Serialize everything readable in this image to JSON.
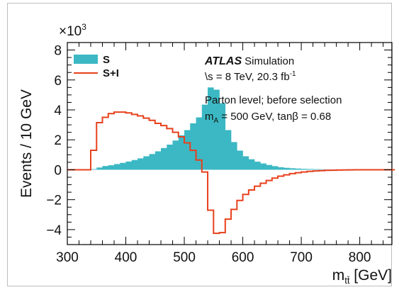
{
  "chart_data": {
    "type": "bar",
    "xlabel": "m",
    "xlabel_sub": "tt̄",
    "xlabel_unit": " [GeV]",
    "ylabel": "Events / 10 GeV",
    "y_multiplier": "×10",
    "y_multiplier_exp": "3",
    "xlim": [
      300,
      855
    ],
    "ylim": [
      -5000,
      8500
    ],
    "x_ticks": [
      300,
      400,
      500,
      600,
      700,
      800
    ],
    "y_ticks": [
      -4,
      -2,
      0,
      2,
      4,
      6,
      8
    ],
    "bin_width": 10,
    "legend": {
      "position": "top-left",
      "items": [
        {
          "label": "S",
          "style": "fill",
          "color": "#3bb8c4"
        },
        {
          "label": "S+I",
          "style": "line",
          "color": "#e8401c"
        }
      ]
    },
    "annotations": {
      "experiment": "ATLAS",
      "experiment_sub": "Simulation",
      "energy_prefix": "\\s = 8 TeV, 20.3 fb",
      "energy_sup": "-1",
      "line3": "Parton level; before selection",
      "line4_m": "m",
      "line4_sub": "A",
      "line4_rest": " = 500 GeV, tanβ = 0.68"
    },
    "series": [
      {
        "name": "S",
        "bin_edges_start": 300,
        "values": [
          0,
          0,
          0,
          0,
          40,
          150,
          250,
          300,
          380,
          460,
          550,
          650,
          760,
          900,
          1050,
          1230,
          1450,
          1680,
          1950,
          2300,
          2650,
          3100,
          3500,
          4350,
          5500,
          5350,
          4450,
          2650,
          1850,
          1280,
          900,
          700,
          540,
          420,
          320,
          240,
          170,
          130,
          100,
          80,
          60,
          50,
          40,
          30,
          20,
          15,
          10,
          10,
          5,
          5,
          5,
          5,
          0,
          0,
          0,
          0
        ]
      },
      {
        "name": "S+I",
        "bin_edges_start": 300,
        "values": [
          0,
          0,
          0,
          0,
          1300,
          3150,
          3500,
          3750,
          3850,
          3850,
          3800,
          3700,
          3600,
          3450,
          3300,
          3100,
          2950,
          2750,
          2500,
          2200,
          1800,
          1300,
          650,
          -150,
          -2700,
          -4250,
          -4200,
          -3300,
          -2650,
          -2050,
          -1650,
          -1350,
          -1100,
          -900,
          -720,
          -560,
          -430,
          -340,
          -260,
          -200,
          -150,
          -110,
          -80,
          -60,
          -40,
          -30,
          -20,
          -15,
          -10,
          -5,
          -5,
          0,
          0,
          0,
          0,
          0
        ]
      }
    ]
  }
}
